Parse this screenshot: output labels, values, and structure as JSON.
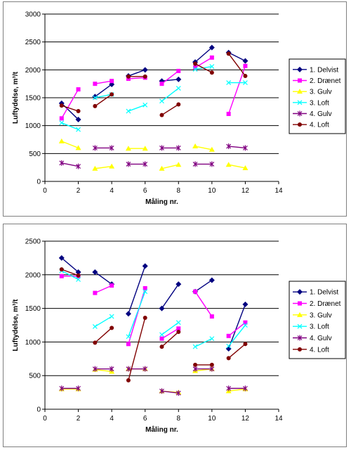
{
  "chart_data": [
    {
      "type": "line",
      "xlabel": "Måling nr.",
      "ylabel": "Luftydelse, m³/t",
      "xlim": [
        0,
        14
      ],
      "ylim": [
        0,
        3000
      ],
      "xticks": [
        0,
        2,
        4,
        6,
        8,
        10,
        12,
        14
      ],
      "yticks": [
        0,
        500,
        1000,
        1500,
        2000,
        2500,
        3000
      ],
      "grid": "horizontal",
      "legend_position": "right",
      "series": [
        {
          "name": "1. Delvist",
          "color": "#000080",
          "marker": "diamond",
          "segments": [
            [
              [
                1,
                1400
              ],
              [
                2,
                1110
              ]
            ],
            [
              [
                3,
                1520
              ],
              [
                4,
                1740
              ]
            ],
            [
              [
                5,
                1890
              ],
              [
                6,
                2000
              ]
            ],
            [
              [
                7,
                1800
              ],
              [
                8,
                1830
              ]
            ],
            [
              [
                9,
                2140
              ],
              [
                10,
                2400
              ]
            ],
            [
              [
                11,
                2310
              ],
              [
                12,
                2160
              ]
            ]
          ]
        },
        {
          "name": "2. Drænet",
          "color": "#ff00ff",
          "marker": "square",
          "segments": [
            [
              [
                1,
                1130
              ],
              [
                2,
                1650
              ]
            ],
            [
              [
                3,
                1750
              ],
              [
                4,
                1800
              ]
            ],
            [
              [
                5,
                1840
              ],
              [
                6,
                1860
              ]
            ],
            [
              [
                7,
                1750
              ],
              [
                8,
                1980
              ]
            ],
            [
              [
                9,
                2040
              ],
              [
                10,
                2220
              ]
            ],
            [
              [
                11,
                1210
              ],
              [
                12,
                2070
              ]
            ]
          ]
        },
        {
          "name": "3. Gulv",
          "color": "#ffff00",
          "marker": "triangle",
          "segments": [
            [
              [
                1,
                720
              ],
              [
                2,
                600
              ]
            ],
            [
              [
                3,
                230
              ],
              [
                4,
                270
              ]
            ],
            [
              [
                5,
                590
              ],
              [
                6,
                590
              ]
            ],
            [
              [
                7,
                230
              ],
              [
                8,
                300
              ]
            ],
            [
              [
                9,
                630
              ],
              [
                10,
                570
              ]
            ],
            [
              [
                11,
                300
              ],
              [
                12,
                240
              ]
            ]
          ]
        },
        {
          "name": "3. Loft",
          "color": "#00ffff",
          "marker": "x",
          "segments": [
            [
              [
                1,
                1050
              ],
              [
                2,
                930
              ]
            ],
            [
              [
                3,
                1500
              ],
              [
                4,
                1560
              ]
            ],
            [
              [
                5,
                1260
              ],
              [
                6,
                1370
              ]
            ],
            [
              [
                7,
                1440
              ],
              [
                8,
                1670
              ]
            ],
            [
              [
                9,
                2010
              ],
              [
                10,
                2060
              ]
            ],
            [
              [
                11,
                1770
              ],
              [
                12,
                1770
              ]
            ]
          ]
        },
        {
          "name": "4. Gulv",
          "color": "#800080",
          "marker": "star",
          "segments": [
            [
              [
                1,
                330
              ],
              [
                2,
                270
              ]
            ],
            [
              [
                3,
                600
              ],
              [
                4,
                600
              ]
            ],
            [
              [
                5,
                310
              ],
              [
                6,
                310
              ]
            ],
            [
              [
                7,
                600
              ],
              [
                8,
                600
              ]
            ],
            [
              [
                9,
                310
              ],
              [
                10,
                310
              ]
            ],
            [
              [
                11,
                630
              ],
              [
                12,
                600
              ]
            ]
          ]
        },
        {
          "name": "4. Loft",
          "color": "#800000",
          "marker": "circle",
          "segments": [
            [
              [
                1,
                1360
              ],
              [
                2,
                1260
              ]
            ],
            [
              [
                3,
                1350
              ],
              [
                4,
                1560
              ]
            ],
            [
              [
                5,
                1880
              ],
              [
                6,
                1880
              ]
            ],
            [
              [
                7,
                1190
              ],
              [
                8,
                1380
              ]
            ],
            [
              [
                9,
                2110
              ],
              [
                10,
                1950
              ]
            ],
            [
              [
                11,
                2290
              ],
              [
                12,
                1890
              ]
            ]
          ]
        }
      ]
    },
    {
      "type": "line",
      "xlabel": "Måling nr.",
      "ylabel": "Luftydelse, m³/t",
      "xlim": [
        0,
        14
      ],
      "ylim": [
        0,
        2500
      ],
      "xticks": [
        0,
        2,
        4,
        6,
        8,
        10,
        12,
        14
      ],
      "yticks": [
        0,
        500,
        1000,
        1500,
        2000,
        2500
      ],
      "grid": "horizontal",
      "legend_position": "right",
      "series": [
        {
          "name": "1. Delvist",
          "color": "#000080",
          "marker": "diamond",
          "segments": [
            [
              [
                1,
                2250
              ],
              [
                2,
                2040
              ]
            ],
            [
              [
                3,
                2040
              ],
              [
                4,
                1860
              ]
            ],
            [
              [
                5,
                1420
              ],
              [
                6,
                2130
              ]
            ],
            [
              [
                7,
                1500
              ],
              [
                8,
                1860
              ]
            ],
            [
              [
                9,
                1750
              ],
              [
                10,
                1920
              ]
            ],
            [
              [
                11,
                900
              ],
              [
                12,
                1560
              ]
            ]
          ]
        },
        {
          "name": "2. Drænet",
          "color": "#ff00ff",
          "marker": "square",
          "segments": [
            [
              [
                1,
                1980
              ],
              [
                2,
                1980
              ]
            ],
            [
              [
                3,
                1730
              ],
              [
                4,
                1840
              ]
            ],
            [
              [
                5,
                970
              ],
              [
                6,
                1800
              ]
            ],
            [
              [
                7,
                1050
              ],
              [
                8,
                1200
              ]
            ],
            [
              [
                9,
                1750
              ],
              [
                10,
                1380
              ]
            ],
            [
              [
                11,
                1090
              ],
              [
                12,
                1290
              ]
            ]
          ]
        },
        {
          "name": "3. Gulv",
          "color": "#ffff00",
          "marker": "triangle",
          "segments": [
            [
              [
                1,
                300
              ],
              [
                2,
                300
              ]
            ],
            [
              [
                3,
                590
              ],
              [
                4,
                560
              ]
            ],
            [
              [
                5,
                600
              ],
              [
                6,
                600
              ]
            ],
            [
              [
                7,
                270
              ],
              [
                8,
                250
              ]
            ],
            [
              [
                9,
                570
              ],
              [
                10,
                600
              ]
            ],
            [
              [
                11,
                270
              ],
              [
                12,
                300
              ]
            ]
          ]
        },
        {
          "name": "3. Loft",
          "color": "#00ffff",
          "marker": "x",
          "segments": [
            [
              [
                1,
                2060
              ],
              [
                2,
                1930
              ]
            ],
            [
              [
                3,
                1230
              ],
              [
                4,
                1380
              ]
            ],
            [
              [
                5,
                1080
              ],
              [
                6,
                1750
              ]
            ],
            [
              [
                7,
                1110
              ],
              [
                8,
                1290
              ]
            ],
            [
              [
                9,
                930
              ],
              [
                10,
                1050
              ]
            ],
            [
              [
                11,
                940
              ],
              [
                12,
                1250
              ]
            ]
          ]
        },
        {
          "name": "4. Gulv",
          "color": "#800080",
          "marker": "star",
          "segments": [
            [
              [
                1,
                310
              ],
              [
                2,
                310
              ]
            ],
            [
              [
                3,
                600
              ],
              [
                4,
                600
              ]
            ],
            [
              [
                5,
                600
              ],
              [
                6,
                600
              ]
            ],
            [
              [
                7,
                270
              ],
              [
                8,
                240
              ]
            ],
            [
              [
                9,
                600
              ],
              [
                10,
                600
              ]
            ],
            [
              [
                11,
                310
              ],
              [
                12,
                310
              ]
            ]
          ]
        },
        {
          "name": "4. Loft",
          "color": "#800000",
          "marker": "circle",
          "segments": [
            [
              [
                1,
                2080
              ],
              [
                2,
                1990
              ]
            ],
            [
              [
                3,
                990
              ],
              [
                4,
                1210
              ]
            ],
            [
              [
                5,
                430
              ],
              [
                6,
                1360
              ]
            ],
            [
              [
                7,
                930
              ],
              [
                8,
                1150
              ]
            ],
            [
              [
                9,
                660
              ],
              [
                10,
                660
              ]
            ],
            [
              [
                11,
                760
              ],
              [
                12,
                970
              ]
            ]
          ]
        }
      ]
    }
  ]
}
